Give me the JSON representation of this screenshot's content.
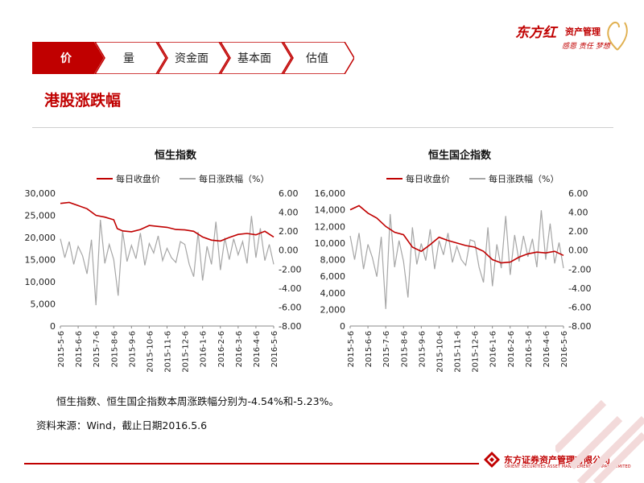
{
  "brand": {
    "name": "东方红",
    "suffix": "资产管理",
    "tagline": "感恩 责任 梦想"
  },
  "nav": {
    "tabs": [
      {
        "label": "价",
        "active": true
      },
      {
        "label": "量",
        "active": false
      },
      {
        "label": "资金面",
        "active": false
      },
      {
        "label": "基本面",
        "active": false
      },
      {
        "label": "估值",
        "active": false
      }
    ],
    "active_color": "#c00000"
  },
  "page_title": "港股涨跌幅",
  "summary": "恒生指数、恒生国企指数本周涨跌幅分别为-4.54%和-5.23%。",
  "source": "资料来源：Wind，截止日期2016.5.6",
  "footer": {
    "company": "东方证券资产管理有限公司",
    "company_en": "ORIENT SECURITIES ASSET MANAGEMENT COMPANY LIMITED"
  },
  "colors": {
    "close": "#c00000",
    "change": "#a6a6a6",
    "accent": "#c00000"
  },
  "chart_data": [
    {
      "type": "line",
      "title": "恒生指数",
      "x_ticks": [
        "2015-5-6",
        "2015-6-6",
        "2015-7-6",
        "2015-8-6",
        "2015-9-6",
        "2015-10-6",
        "2015-11-6",
        "2015-12-6",
        "2016-1-6",
        "2016-2-6",
        "2016-3-6",
        "2016-4-6",
        "2016-5-6"
      ],
      "y_left": {
        "min": 0,
        "max": 30000,
        "ticks": [
          "0",
          "5,000",
          "10,000",
          "15,000",
          "20,000",
          "25,000",
          "30,000"
        ]
      },
      "y_right": {
        "min": -8,
        "max": 6,
        "ticks": [
          "-8.00",
          "-6.00",
          "-4.00",
          "-2.00",
          "0.00",
          "2.00",
          "4.00",
          "6.00"
        ]
      },
      "series": [
        {
          "name": "每日收盘价",
          "axis": "left",
          "color": "#c00000",
          "x_months": [
            0,
            0.5,
            1,
            1.5,
            2,
            2.5,
            3,
            3.2,
            3.5,
            4,
            4.5,
            5,
            5.5,
            6,
            6.5,
            7,
            7.5,
            8,
            8.5,
            9,
            9.5,
            10,
            10.5,
            11,
            11.5,
            12
          ],
          "values": [
            27700,
            27900,
            27200,
            26500,
            25000,
            24600,
            24000,
            22000,
            21500,
            21300,
            21800,
            22700,
            22500,
            22300,
            21800,
            21700,
            21400,
            20100,
            19400,
            19200,
            20000,
            20700,
            20900,
            20600,
            21400,
            20100
          ]
        },
        {
          "name": "每日涨跌幅（%）",
          "axis": "right",
          "color": "#a6a6a6",
          "x_months": [
            0,
            0.25,
            0.5,
            0.75,
            1,
            1.25,
            1.5,
            1.75,
            2,
            2.25,
            2.5,
            2.75,
            3,
            3.25,
            3.5,
            3.75,
            4,
            4.25,
            4.5,
            4.75,
            5,
            5.25,
            5.5,
            5.75,
            6,
            6.25,
            6.5,
            6.75,
            7,
            7.25,
            7.5,
            7.75,
            8,
            8.25,
            8.5,
            8.75,
            9,
            9.25,
            9.5,
            9.75,
            10,
            10.25,
            10.5,
            10.75,
            11,
            11.25,
            11.5,
            11.75,
            12
          ],
          "values": [
            1.2,
            -0.8,
            0.9,
            -1.5,
            0.4,
            -0.6,
            -2.5,
            1.1,
            -5.8,
            3.2,
            -1.4,
            0.6,
            -1.0,
            -4.8,
            2.0,
            -1.2,
            0.5,
            -0.9,
            1.8,
            -1.6,
            0.7,
            -0.3,
            1.5,
            -1.1,
            0.2,
            -0.8,
            -1.3,
            0.9,
            0.6,
            -1.5,
            -2.8,
            1.9,
            -3.2,
            0.4,
            -1.5,
            3.0,
            -2.1,
            1.3,
            -1.0,
            1.2,
            -0.5,
            0.9,
            -1.4,
            3.6,
            -0.8,
            2.3,
            -1.1,
            0.6,
            -1.5
          ]
        }
      ]
    },
    {
      "type": "line",
      "title": "恒生国企指数",
      "x_ticks": [
        "2015-5-6",
        "2015-6-6",
        "2015-7-6",
        "2015-8-6",
        "2015-9-6",
        "2015-10-6",
        "2015-11-6",
        "2015-12-6",
        "2016-1-6",
        "2016-2-6",
        "2016-3-6",
        "2016-4-6",
        "2016-5-6"
      ],
      "y_left": {
        "min": 0,
        "max": 16000,
        "ticks": [
          "0",
          "2,000",
          "4,000",
          "6,000",
          "8,000",
          "10,000",
          "12,000",
          "14,000",
          "16,000"
        ]
      },
      "y_right": {
        "min": -8,
        "max": 6,
        "ticks": [
          "-8.00",
          "-6.00",
          "-4.00",
          "-2.00",
          "0.00",
          "2.00",
          "4.00",
          "6.00"
        ]
      },
      "series": [
        {
          "name": "每日收盘价",
          "axis": "left",
          "color": "#c00000",
          "x_months": [
            0,
            0.5,
            1,
            1.5,
            2,
            2.5,
            3,
            3.5,
            4,
            4.5,
            5,
            5.5,
            6,
            6.5,
            7,
            7.5,
            8,
            8.5,
            9,
            9.5,
            10,
            10.5,
            11,
            11.5,
            12
          ],
          "values": [
            14000,
            14500,
            13600,
            13000,
            12000,
            11300,
            11000,
            9500,
            9000,
            9800,
            10700,
            10300,
            10000,
            9700,
            9500,
            9000,
            8000,
            7600,
            7700,
            8300,
            8700,
            8900,
            8800,
            9000,
            8500
          ]
        },
        {
          "name": "每日涨跌幅（%）",
          "axis": "right",
          "color": "#a6a6a6",
          "x_months": [
            0,
            0.25,
            0.5,
            0.75,
            1,
            1.25,
            1.5,
            1.75,
            2,
            2.25,
            2.5,
            2.75,
            3,
            3.25,
            3.5,
            3.75,
            4,
            4.25,
            4.5,
            4.75,
            5,
            5.25,
            5.5,
            5.75,
            6,
            6.25,
            6.5,
            6.75,
            7,
            7.25,
            7.5,
            7.75,
            8,
            8.25,
            8.5,
            8.75,
            9,
            9.25,
            9.5,
            9.75,
            10,
            10.25,
            10.5,
            10.75,
            11,
            11.25,
            11.5,
            11.75,
            12
          ],
          "values": [
            1.5,
            -1.0,
            1.8,
            -2.0,
            0.6,
            -0.8,
            -2.8,
            1.4,
            -6.2,
            3.8,
            -1.8,
            1.0,
            -1.2,
            -5.0,
            2.4,
            -1.5,
            0.7,
            -1.1,
            2.2,
            -2.0,
            1.0,
            -0.5,
            1.8,
            -1.3,
            0.4,
            -1.0,
            -1.6,
            1.1,
            0.9,
            -1.8,
            -3.4,
            2.4,
            -3.8,
            0.6,
            -1.9,
            3.6,
            -2.6,
            1.6,
            -1.2,
            1.5,
            -0.7,
            1.2,
            -1.8,
            4.2,
            -1.0,
            2.8,
            -1.4,
            0.8,
            -1.9
          ]
        }
      ]
    }
  ]
}
